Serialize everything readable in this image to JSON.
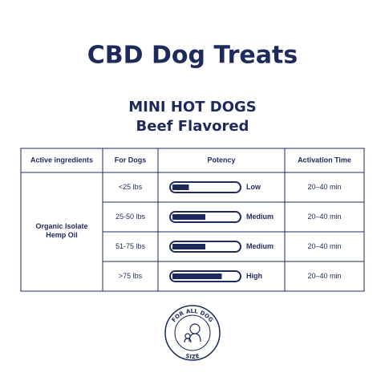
{
  "header": {
    "title": "CBD Dog Treats",
    "product": "MINI HOT DOGS",
    "flavor": "Beef Flavored"
  },
  "table": {
    "columns": [
      "Active ingredients",
      "For Dogs",
      "Potency",
      "Activation Time"
    ],
    "ingredient": "Organic Isolate Hemp Oil",
    "rows": [
      {
        "weight": "<25 lbs",
        "potency": "Low",
        "fill": 0.25,
        "time": "20–40 min"
      },
      {
        "weight": "25-50 lbs",
        "potency": "Medium",
        "fill": 0.5,
        "time": "20–40 min"
      },
      {
        "weight": "51-75 lbs",
        "potency": "Medium",
        "fill": 0.5,
        "time": "20–40 min"
      },
      {
        "weight": ">75 lbs",
        "potency": "High",
        "fill": 0.75,
        "time": "20–40 min"
      }
    ]
  },
  "badge": {
    "top": "FOR ALL DOG",
    "bottom": "SIZE"
  }
}
